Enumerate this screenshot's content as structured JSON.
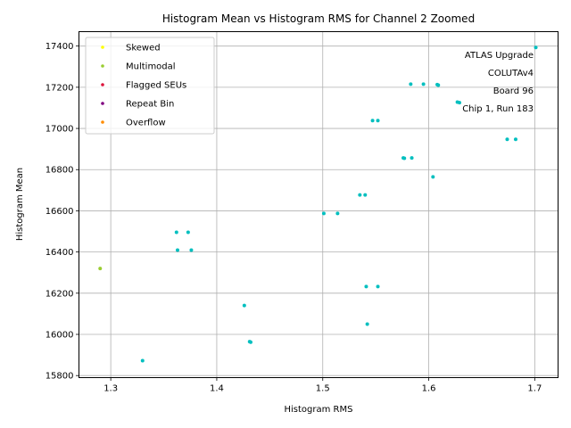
{
  "chart_data": {
    "type": "scatter",
    "title": "Histogram Mean vs Histogram RMS for Channel 2 Zoomed",
    "xlabel": "Histogram RMS",
    "ylabel": "Histogram Mean",
    "xlim": [
      1.27,
      1.722
    ],
    "ylim": [
      15790,
      17470
    ],
    "x_ticks": [
      1.3,
      1.4,
      1.5,
      1.6,
      1.7
    ],
    "x_tick_labels": [
      "1.3",
      "1.4",
      "1.5",
      "1.6",
      "1.7"
    ],
    "y_ticks": [
      15800,
      16000,
      16200,
      16400,
      16600,
      16800,
      17000,
      17200,
      17400
    ],
    "y_tick_labels": [
      "15800",
      "16000",
      "16200",
      "16400",
      "16600",
      "16800",
      "17000",
      "17200",
      "17400"
    ],
    "grid": true,
    "legend_position": "upper-left",
    "legend": [
      {
        "label": "Skewed",
        "color": "#ffff00"
      },
      {
        "label": "Multimodal",
        "color": "#9acd32"
      },
      {
        "label": "Flagged SEUs",
        "color": "#dc143c"
      },
      {
        "label": "Repeat Bin",
        "color": "#800080"
      },
      {
        "label": "Overflow",
        "color": "#ff8c00"
      }
    ],
    "annotation_lines": [
      "ATLAS Upgrade",
      "COLUTAv4",
      "Board 96",
      "Chip 1, Run 183"
    ],
    "series": [
      {
        "color": "#00bfbf",
        "points": [
          {
            "x": 1.701,
            "y": 17393
          },
          {
            "x": 1.583,
            "y": 17215
          },
          {
            "x": 1.595,
            "y": 17215
          },
          {
            "x": 1.608,
            "y": 17213
          },
          {
            "x": 1.609,
            "y": 17210
          },
          {
            "x": 1.627,
            "y": 17128
          },
          {
            "x": 1.629,
            "y": 17125
          },
          {
            "x": 1.547,
            "y": 17038
          },
          {
            "x": 1.552,
            "y": 17038
          },
          {
            "x": 1.674,
            "y": 16947
          },
          {
            "x": 1.682,
            "y": 16947
          },
          {
            "x": 1.576,
            "y": 16857
          },
          {
            "x": 1.577,
            "y": 16855
          },
          {
            "x": 1.584,
            "y": 16857
          },
          {
            "x": 1.604,
            "y": 16765
          },
          {
            "x": 1.535,
            "y": 16677
          },
          {
            "x": 1.54,
            "y": 16677
          },
          {
            "x": 1.501,
            "y": 16587
          },
          {
            "x": 1.514,
            "y": 16587
          },
          {
            "x": 1.362,
            "y": 16496
          },
          {
            "x": 1.373,
            "y": 16496
          },
          {
            "x": 1.363,
            "y": 16409
          },
          {
            "x": 1.376,
            "y": 16409
          },
          {
            "x": 1.541,
            "y": 16232
          },
          {
            "x": 1.552,
            "y": 16232
          },
          {
            "x": 1.426,
            "y": 16140
          },
          {
            "x": 1.542,
            "y": 16050
          },
          {
            "x": 1.431,
            "y": 15965
          },
          {
            "x": 1.432,
            "y": 15962
          },
          {
            "x": 1.33,
            "y": 15872
          }
        ]
      },
      {
        "color": "#9acd32",
        "points": [
          {
            "x": 1.29,
            "y": 16320
          }
        ]
      }
    ]
  }
}
